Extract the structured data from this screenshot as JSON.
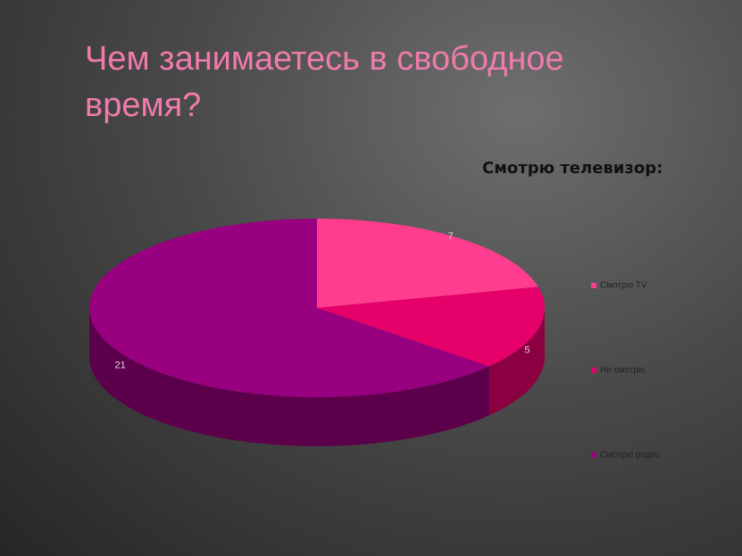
{
  "title": "Чем занимаетесь в свободное время?",
  "chart_data": {
    "type": "pie",
    "title": "Смотрю телевизор:",
    "categories": [
      "Смотрю TV",
      "Не смотрю",
      "Смотрю редко"
    ],
    "values": [
      7,
      5,
      21
    ],
    "colors": [
      "#ff3c8e",
      "#e6006a",
      "#99007f"
    ],
    "legend": "right"
  }
}
